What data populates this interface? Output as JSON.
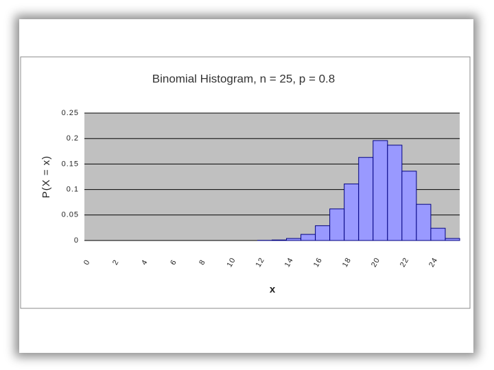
{
  "chart_data": {
    "type": "bar",
    "title": "Binomial Histogram, n = 25, p = 0.8",
    "x_label": "x",
    "y_label": "P(X = x)",
    "categories": [
      "0",
      null,
      "2",
      null,
      "4",
      null,
      "6",
      null,
      "8",
      null,
      "10",
      null,
      "12",
      null,
      "14",
      null,
      "16",
      null,
      "18",
      null,
      "20",
      null,
      "22",
      null,
      "24",
      null
    ],
    "values": [
      0,
      0,
      0,
      0,
      0,
      0,
      0,
      0,
      0,
      0,
      0,
      0,
      0.0003,
      0.001,
      0.004,
      0.012,
      0.029,
      0.062,
      0.111,
      0.163,
      0.196,
      0.187,
      0.136,
      0.071,
      0.024,
      0.004
    ],
    "color": "#9999ff",
    "edge_color": "#000080",
    "plot_background": "#c0c0c0",
    "ylim": [
      0,
      0.25
    ],
    "yticks": [
      0,
      0.05,
      0.1,
      0.15,
      0.2,
      0.25
    ],
    "grid": true
  }
}
